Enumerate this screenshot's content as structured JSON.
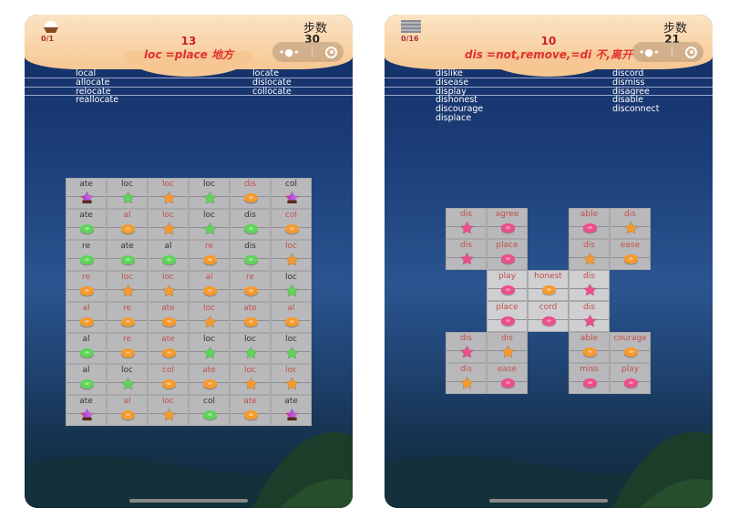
{
  "screens": [
    {
      "collected": "0/1",
      "header_icon": "cupcake-icon",
      "level": "13",
      "rule": "loc =place 地方",
      "steps_label": "步数",
      "steps": "30",
      "words_left": [
        "local",
        "allocate",
        "relocate",
        "reallocate"
      ],
      "words_right": [
        "locate",
        "dislocate",
        "collocate"
      ],
      "board": {
        "cols": 6,
        "cells": [
          [
            "ate",
            "rainbow",
            "star"
          ],
          [
            "loc",
            "green",
            "star"
          ],
          [
            "loc",
            "orange",
            "star"
          ],
          [
            "loc",
            "green",
            "star"
          ],
          [
            "dis",
            "orange",
            "donut"
          ],
          [
            "col",
            "rainbow",
            "star"
          ],
          [
            "ate",
            "green",
            "donut"
          ],
          [
            "al",
            "orange",
            "donut"
          ],
          [
            "loc",
            "orange",
            "star"
          ],
          [
            "loc",
            "green",
            "star"
          ],
          [
            "dis",
            "green",
            "donut"
          ],
          [
            "col",
            "orange",
            "donut"
          ],
          [
            "re",
            "green",
            "donut"
          ],
          [
            "ate",
            "green",
            "donut"
          ],
          [
            "al",
            "green",
            "donut"
          ],
          [
            "re",
            "orange",
            "donut"
          ],
          [
            "dis",
            "green",
            "donut"
          ],
          [
            "loc",
            "orange",
            "star"
          ],
          [
            "re",
            "orange",
            "donut"
          ],
          [
            "loc",
            "orange",
            "star"
          ],
          [
            "loc",
            "orange",
            "star"
          ],
          [
            "al",
            "orange",
            "donut"
          ],
          [
            "re",
            "orange",
            "donut"
          ],
          [
            "loc",
            "green",
            "star"
          ],
          [
            "al",
            "orange",
            "donut"
          ],
          [
            "re",
            "orange",
            "donut"
          ],
          [
            "ate",
            "orange",
            "donut"
          ],
          [
            "loc",
            "orange",
            "star"
          ],
          [
            "ate",
            "orange",
            "donut"
          ],
          [
            "al",
            "orange",
            "donut"
          ],
          [
            "al",
            "green",
            "donut"
          ],
          [
            "re",
            "orange",
            "donut"
          ],
          [
            "ate",
            "orange",
            "donut"
          ],
          [
            "loc",
            "green",
            "star"
          ],
          [
            "loc",
            "green",
            "star"
          ],
          [
            "loc",
            "green",
            "star"
          ],
          [
            "al",
            "green",
            "donut"
          ],
          [
            "loc",
            "green",
            "star"
          ],
          [
            "col",
            "orange",
            "donut"
          ],
          [
            "ate",
            "orange",
            "donut"
          ],
          [
            "loc",
            "orange",
            "star"
          ],
          [
            "loc",
            "orange",
            "star"
          ],
          [
            "ate",
            "rainbow",
            "star"
          ],
          [
            "al",
            "orange",
            "donut"
          ],
          [
            "loc",
            "orange",
            "star"
          ],
          [
            "col",
            "green",
            "donut"
          ],
          [
            "ate",
            "orange",
            "donut"
          ],
          [
            "ate",
            "rainbow",
            "star"
          ]
        ]
      }
    },
    {
      "collected": "0/16",
      "header_icon": "block-icon",
      "level": "10",
      "rule": "dis =not,remove,=di 不,离开",
      "steps_label": "步数",
      "steps": "21",
      "words_left": [
        "dislike",
        "disease",
        "display",
        "dishonest",
        "discourage",
        "displace"
      ],
      "words_right": [
        "discord",
        "dismiss",
        "disagree",
        "disable",
        "disconnect"
      ],
      "board": {
        "cols": 5,
        "cells": [
          [
            "dis",
            "pink",
            "star"
          ],
          [
            "agree",
            "pink",
            "donut"
          ],
          null,
          [
            "able",
            "pink",
            "donut"
          ],
          [
            "dis",
            "orange",
            "star"
          ],
          [
            "dis",
            "pink",
            "star"
          ],
          [
            "place",
            "pink",
            "donut"
          ],
          null,
          [
            "dis",
            "orange",
            "star"
          ],
          [
            "ease",
            "orange",
            "donut"
          ],
          null,
          [
            "play",
            "pink",
            "donut"
          ],
          [
            "honest",
            "orange",
            "donut"
          ],
          [
            "dis",
            "pink",
            "star"
          ],
          null,
          null,
          [
            "place",
            "pink",
            "donut"
          ],
          [
            "cord",
            "pink",
            "donut"
          ],
          [
            "dis",
            "pink",
            "star"
          ],
          null,
          [
            "dis",
            "pink",
            "star"
          ],
          [
            "dis",
            "orange",
            "star"
          ],
          null,
          [
            "able",
            "orange",
            "donut"
          ],
          [
            "courage",
            "orange",
            "donut"
          ],
          [
            "dis",
            "orange",
            "star"
          ],
          [
            "ease",
            "pink",
            "donut"
          ],
          null,
          [
            "miss",
            "pink",
            "donut"
          ],
          [
            "play",
            "pink",
            "donut"
          ]
        ]
      }
    }
  ],
  "colors": {
    "green": "#5fd35a",
    "orange": "#f59a2e",
    "pink": "#ec4f8c",
    "label_dark": "#333333",
    "label_red": "#c0504a"
  }
}
